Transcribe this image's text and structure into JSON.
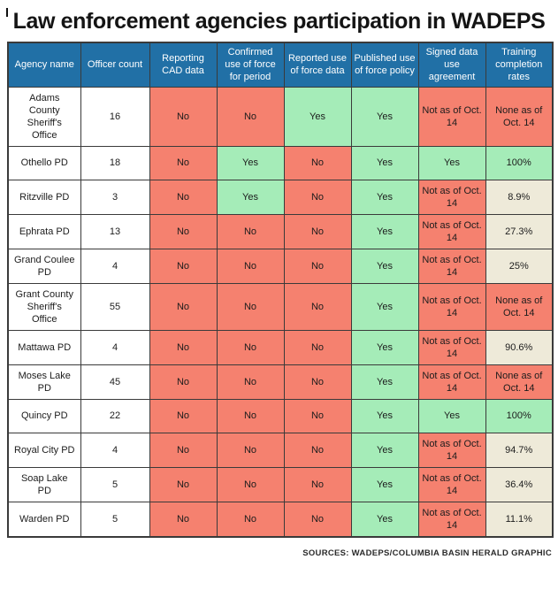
{
  "title": "Law enforcement agencies participation in WADEPS",
  "source": "SOURCES: WADEPS/COLUMBIA BASIN HERALD GRAPHIC",
  "colors": {
    "header-blue": "#2170a6",
    "red": "#f5816f",
    "green": "#a5ecb8",
    "beige": "#eeead9",
    "border": "#3a3a3a"
  },
  "chart_data": {
    "type": "table",
    "title": "Law enforcement agencies participation in WADEPS",
    "columns": [
      "Agency name",
      "Officer count",
      "Reporting CAD data",
      "Confirmed use of force for period",
      "Reported use of force data",
      "Published use of force policy",
      "Signed data use agreement",
      "Training completion rates"
    ],
    "rows": [
      {
        "agency": "Adams County Sheriff's Office",
        "officers": "16",
        "cells": [
          {
            "text": "No",
            "color": "red"
          },
          {
            "text": "No",
            "color": "red"
          },
          {
            "text": "Yes",
            "color": "green"
          },
          {
            "text": "Yes",
            "color": "green"
          },
          {
            "text": "Not as of Oct. 14",
            "color": "red"
          },
          {
            "text": "None as of Oct. 14",
            "color": "red"
          }
        ]
      },
      {
        "agency": "Othello PD",
        "officers": "18",
        "cells": [
          {
            "text": "No",
            "color": "red"
          },
          {
            "text": "Yes",
            "color": "green"
          },
          {
            "text": "No",
            "color": "red"
          },
          {
            "text": "Yes",
            "color": "green"
          },
          {
            "text": "Yes",
            "color": "green"
          },
          {
            "text": "100%",
            "color": "green"
          }
        ]
      },
      {
        "agency": "Ritzville PD",
        "officers": "3",
        "cells": [
          {
            "text": "No",
            "color": "red"
          },
          {
            "text": "Yes",
            "color": "green"
          },
          {
            "text": "No",
            "color": "red"
          },
          {
            "text": "Yes",
            "color": "green"
          },
          {
            "text": "Not as of Oct. 14",
            "color": "red"
          },
          {
            "text": "8.9%",
            "color": "beige"
          }
        ]
      },
      {
        "agency": "Ephrata PD",
        "officers": "13",
        "cells": [
          {
            "text": "No",
            "color": "red"
          },
          {
            "text": "No",
            "color": "red"
          },
          {
            "text": "No",
            "color": "red"
          },
          {
            "text": "Yes",
            "color": "green"
          },
          {
            "text": "Not as of Oct. 14",
            "color": "red"
          },
          {
            "text": "27.3%",
            "color": "beige"
          }
        ]
      },
      {
        "agency": "Grand Coulee PD",
        "officers": "4",
        "cells": [
          {
            "text": "No",
            "color": "red"
          },
          {
            "text": "No",
            "color": "red"
          },
          {
            "text": "No",
            "color": "red"
          },
          {
            "text": "Yes",
            "color": "green"
          },
          {
            "text": "Not as of Oct. 14",
            "color": "red"
          },
          {
            "text": "25%",
            "color": "beige"
          }
        ]
      },
      {
        "agency": "Grant County Sheriff's Office",
        "officers": "55",
        "cells": [
          {
            "text": "No",
            "color": "red"
          },
          {
            "text": "No",
            "color": "red"
          },
          {
            "text": "No",
            "color": "red"
          },
          {
            "text": "Yes",
            "color": "green"
          },
          {
            "text": "Not as of Oct. 14",
            "color": "red"
          },
          {
            "text": "None as of Oct. 14",
            "color": "red"
          }
        ]
      },
      {
        "agency": "Mattawa PD",
        "officers": "4",
        "cells": [
          {
            "text": "No",
            "color": "red"
          },
          {
            "text": "No",
            "color": "red"
          },
          {
            "text": "No",
            "color": "red"
          },
          {
            "text": "Yes",
            "color": "green"
          },
          {
            "text": "Not as of Oct. 14",
            "color": "red"
          },
          {
            "text": "90.6%",
            "color": "beige"
          }
        ]
      },
      {
        "agency": "Moses Lake PD",
        "officers": "45",
        "cells": [
          {
            "text": "No",
            "color": "red"
          },
          {
            "text": "No",
            "color": "red"
          },
          {
            "text": "No",
            "color": "red"
          },
          {
            "text": "Yes",
            "color": "green"
          },
          {
            "text": "Not as of Oct. 14",
            "color": "red"
          },
          {
            "text": "None as of Oct. 14",
            "color": "red"
          }
        ]
      },
      {
        "agency": "Quincy PD",
        "officers": "22",
        "cells": [
          {
            "text": "No",
            "color": "red"
          },
          {
            "text": "No",
            "color": "red"
          },
          {
            "text": "No",
            "color": "red"
          },
          {
            "text": "Yes",
            "color": "green"
          },
          {
            "text": "Yes",
            "color": "green"
          },
          {
            "text": "100%",
            "color": "green"
          }
        ]
      },
      {
        "agency": "Royal City PD",
        "officers": "4",
        "cells": [
          {
            "text": "No",
            "color": "red"
          },
          {
            "text": "No",
            "color": "red"
          },
          {
            "text": "No",
            "color": "red"
          },
          {
            "text": "Yes",
            "color": "green"
          },
          {
            "text": "Not as of Oct. 14",
            "color": "red"
          },
          {
            "text": "94.7%",
            "color": "beige"
          }
        ]
      },
      {
        "agency": "Soap Lake PD",
        "officers": "5",
        "cells": [
          {
            "text": "No",
            "color": "red"
          },
          {
            "text": "No",
            "color": "red"
          },
          {
            "text": "No",
            "color": "red"
          },
          {
            "text": "Yes",
            "color": "green"
          },
          {
            "text": "Not as of Oct. 14",
            "color": "red"
          },
          {
            "text": "36.4%",
            "color": "beige"
          }
        ]
      },
      {
        "agency": "Warden PD",
        "officers": "5",
        "cells": [
          {
            "text": "No",
            "color": "red"
          },
          {
            "text": "No",
            "color": "red"
          },
          {
            "text": "No",
            "color": "red"
          },
          {
            "text": "Yes",
            "color": "green"
          },
          {
            "text": "Not as of Oct. 14",
            "color": "red"
          },
          {
            "text": "11.1%",
            "color": "beige"
          }
        ]
      }
    ]
  }
}
